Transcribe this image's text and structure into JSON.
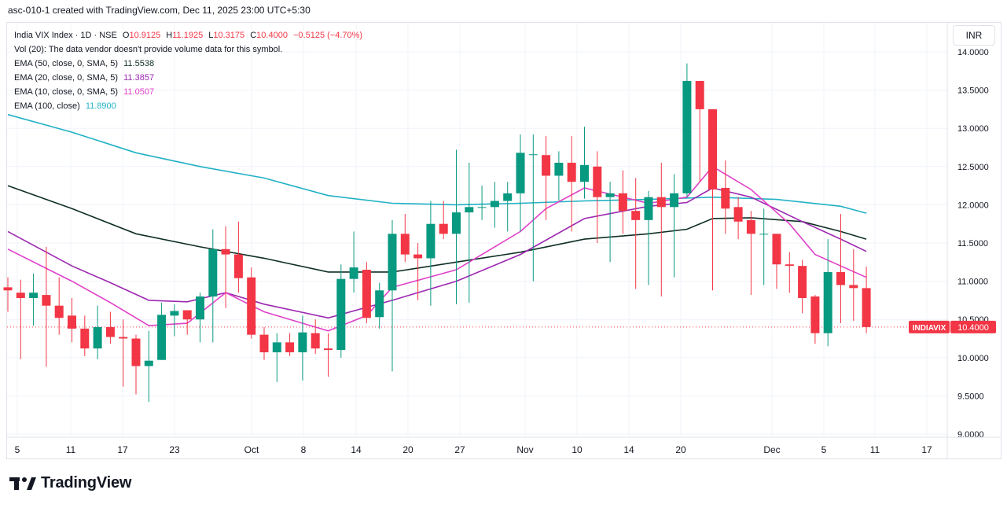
{
  "header": {
    "title": "asc-010-1 created with TradingView.com, Dec 11, 2025 23:00 UTC+5:30"
  },
  "legend": {
    "symbol": "India VIX Index · 1D · NSE",
    "open_label": "O",
    "open": "10.9125",
    "high_label": "H",
    "high": "11.1925",
    "low_label": "L",
    "low": "10.3175",
    "close_label": "C",
    "close": "10.4000",
    "change": "−0.5125 (−4.70%)",
    "volume_note": "Vol (20): The data vendor doesn't provide volume data for this symbol.",
    "ema50_label": "EMA (50, close, 0, SMA, 5)",
    "ema50_value": "11.5538",
    "ema50_color": "#0f2f25",
    "ema20_label": "EMA (20, close, 0, SMA, 5)",
    "ema20_value": "11.3857",
    "ema20_color": "#9c27b0",
    "ema10_label": "EMA (10, close, 0, SMA, 5)",
    "ema10_value": "11.0507",
    "ema10_color": "#e040c8",
    "ema100_label": "EMA (100, close)",
    "ema100_value": "11.8900",
    "ema100_color": "#22b1c5"
  },
  "currency": "INR",
  "price_tag": {
    "symbol": "INDIAVIX",
    "value": "10.4000"
  },
  "brand": "TradingView",
  "chart_data": {
    "type": "candlestick",
    "colors": {
      "up": "#089981",
      "down": "#f23645",
      "grid": "#f0f3fa",
      "last_line": "#f23645"
    },
    "ylim": [
      8.9,
      14.3
    ],
    "y_ticks": [
      "14.0000",
      "13.5000",
      "13.0000",
      "12.5000",
      "12.0000",
      "11.5000",
      "11.0000",
      "10.5000",
      "10.0000",
      "9.5000",
      "9.0000"
    ],
    "x_ticks": [
      "5",
      "11",
      "17",
      "23",
      "Oct",
      "8",
      "14",
      "20",
      "27",
      "Nov",
      "10",
      "14",
      "20",
      "Dec",
      "5",
      "11",
      "17"
    ],
    "candles": [
      {
        "o": 10.92,
        "h": 11.05,
        "l": 10.6,
        "c": 10.88
      },
      {
        "o": 10.85,
        "h": 11.02,
        "l": 9.98,
        "c": 10.78
      },
      {
        "o": 10.78,
        "h": 11.1,
        "l": 10.42,
        "c": 10.85
      },
      {
        "o": 10.82,
        "h": 11.45,
        "l": 9.88,
        "c": 10.68
      },
      {
        "o": 10.68,
        "h": 11.05,
        "l": 10.3,
        "c": 10.52
      },
      {
        "o": 10.55,
        "h": 10.78,
        "l": 10.2,
        "c": 10.38
      },
      {
        "o": 10.38,
        "h": 10.55,
        "l": 10.02,
        "c": 10.12
      },
      {
        "o": 10.12,
        "h": 10.68,
        "l": 9.98,
        "c": 10.4
      },
      {
        "o": 10.4,
        "h": 10.6,
        "l": 10.18,
        "c": 10.27
      },
      {
        "o": 10.27,
        "h": 10.5,
        "l": 9.62,
        "c": 10.25
      },
      {
        "o": 10.25,
        "h": 10.3,
        "l": 9.52,
        "c": 9.89
      },
      {
        "o": 9.89,
        "h": 10.35,
        "l": 9.42,
        "c": 9.96
      },
      {
        "o": 9.97,
        "h": 10.72,
        "l": 9.97,
        "c": 10.56
      },
      {
        "o": 10.55,
        "h": 10.7,
        "l": 10.28,
        "c": 10.61
      },
      {
        "o": 10.62,
        "h": 10.62,
        "l": 10.3,
        "c": 10.5
      },
      {
        "o": 10.5,
        "h": 10.85,
        "l": 10.2,
        "c": 10.8
      },
      {
        "o": 10.8,
        "h": 11.68,
        "l": 10.2,
        "c": 11.42
      },
      {
        "o": 11.42,
        "h": 11.72,
        "l": 10.65,
        "c": 11.35
      },
      {
        "o": 11.35,
        "h": 11.78,
        "l": 10.85,
        "c": 11.04
      },
      {
        "o": 11.05,
        "h": 11.18,
        "l": 10.25,
        "c": 10.3
      },
      {
        "o": 10.3,
        "h": 10.4,
        "l": 9.97,
        "c": 10.07
      },
      {
        "o": 10.07,
        "h": 10.32,
        "l": 9.68,
        "c": 10.2
      },
      {
        "o": 10.2,
        "h": 10.32,
        "l": 10.02,
        "c": 10.07
      },
      {
        "o": 10.07,
        "h": 10.55,
        "l": 9.7,
        "c": 10.33
      },
      {
        "o": 10.32,
        "h": 10.5,
        "l": 10.05,
        "c": 10.12
      },
      {
        "o": 10.12,
        "h": 10.32,
        "l": 9.75,
        "c": 10.1
      },
      {
        "o": 10.1,
        "h": 11.22,
        "l": 10.0,
        "c": 11.03
      },
      {
        "o": 11.03,
        "h": 11.65,
        "l": 10.85,
        "c": 11.18
      },
      {
        "o": 11.15,
        "h": 11.25,
        "l": 10.45,
        "c": 10.52
      },
      {
        "o": 10.53,
        "h": 10.98,
        "l": 10.38,
        "c": 10.88
      },
      {
        "o": 10.88,
        "h": 11.8,
        "l": 9.82,
        "c": 11.62
      },
      {
        "o": 11.62,
        "h": 11.88,
        "l": 11.25,
        "c": 11.35
      },
      {
        "o": 11.35,
        "h": 11.5,
        "l": 10.75,
        "c": 11.3
      },
      {
        "o": 11.3,
        "h": 12.05,
        "l": 10.68,
        "c": 11.75
      },
      {
        "o": 11.75,
        "h": 12.05,
        "l": 11.55,
        "c": 11.62
      },
      {
        "o": 11.62,
        "h": 12.72,
        "l": 10.7,
        "c": 11.9
      },
      {
        "o": 11.9,
        "h": 12.55,
        "l": 10.72,
        "c": 11.97
      },
      {
        "o": 11.97,
        "h": 12.25,
        "l": 11.8,
        "c": 11.97
      },
      {
        "o": 11.97,
        "h": 12.3,
        "l": 11.7,
        "c": 12.05
      },
      {
        "o": 12.05,
        "h": 12.3,
        "l": 11.65,
        "c": 12.15
      },
      {
        "o": 12.15,
        "h": 12.92,
        "l": 11.65,
        "c": 12.68
      },
      {
        "o": 12.66,
        "h": 12.92,
        "l": 11.0,
        "c": 12.66
      },
      {
        "o": 12.65,
        "h": 12.9,
        "l": 11.8,
        "c": 12.38
      },
      {
        "o": 12.38,
        "h": 12.7,
        "l": 12.05,
        "c": 12.55
      },
      {
        "o": 12.55,
        "h": 12.9,
        "l": 11.65,
        "c": 12.3
      },
      {
        "o": 12.3,
        "h": 13.02,
        "l": 12.08,
        "c": 12.52
      },
      {
        "o": 12.5,
        "h": 12.7,
        "l": 11.5,
        "c": 12.1
      },
      {
        "o": 12.1,
        "h": 12.3,
        "l": 11.25,
        "c": 12.15
      },
      {
        "o": 12.15,
        "h": 12.45,
        "l": 11.62,
        "c": 11.92
      },
      {
        "o": 11.92,
        "h": 12.35,
        "l": 10.9,
        "c": 11.8
      },
      {
        "o": 11.8,
        "h": 12.18,
        "l": 10.95,
        "c": 12.1
      },
      {
        "o": 12.1,
        "h": 12.55,
        "l": 10.8,
        "c": 11.97
      },
      {
        "o": 11.97,
        "h": 12.4,
        "l": 11.05,
        "c": 12.15
      },
      {
        "o": 12.15,
        "h": 13.85,
        "l": 12.1,
        "c": 13.62
      },
      {
        "o": 13.62,
        "h": 13.62,
        "l": 12.3,
        "c": 13.25
      },
      {
        "o": 13.25,
        "h": 13.25,
        "l": 10.88,
        "c": 12.2
      },
      {
        "o": 12.22,
        "h": 12.58,
        "l": 11.62,
        "c": 11.95
      },
      {
        "o": 11.97,
        "h": 12.1,
        "l": 11.55,
        "c": 11.78
      },
      {
        "o": 11.8,
        "h": 11.92,
        "l": 10.82,
        "c": 11.62
      },
      {
        "o": 11.62,
        "h": 11.95,
        "l": 10.95,
        "c": 11.62
      },
      {
        "o": 11.62,
        "h": 11.62,
        "l": 10.9,
        "c": 11.22
      },
      {
        "o": 11.22,
        "h": 11.38,
        "l": 10.85,
        "c": 11.2
      },
      {
        "o": 11.2,
        "h": 11.28,
        "l": 10.58,
        "c": 10.78
      },
      {
        "o": 10.8,
        "h": 10.82,
        "l": 10.18,
        "c": 10.32
      },
      {
        "o": 10.32,
        "h": 11.55,
        "l": 10.15,
        "c": 11.12
      },
      {
        "o": 11.12,
        "h": 11.88,
        "l": 10.45,
        "c": 10.95
      },
      {
        "o": 10.95,
        "h": 11.42,
        "l": 10.48,
        "c": 10.91
      },
      {
        "o": 10.91,
        "h": 11.19,
        "l": 10.32,
        "c": 10.4
      }
    ],
    "ema_series": [
      {
        "name": "EMA (100, close)",
        "color": "#22b1c5",
        "width": 1.6,
        "points": [
          [
            0,
            13.18
          ],
          [
            5,
            12.95
          ],
          [
            10,
            12.68
          ],
          [
            15,
            12.5
          ],
          [
            20,
            12.35
          ],
          [
            25,
            12.12
          ],
          [
            30,
            12.02
          ],
          [
            35,
            12.0
          ],
          [
            40,
            12.02
          ],
          [
            45,
            12.05
          ],
          [
            50,
            12.07
          ],
          [
            55,
            12.1
          ],
          [
            60,
            12.07
          ],
          [
            65,
            11.98
          ],
          [
            67,
            11.89
          ]
        ]
      },
      {
        "name": "EMA (50, close, 0, SMA, 5)",
        "color": "#0f2f25",
        "width": 1.6,
        "points": [
          [
            0,
            12.25
          ],
          [
            5,
            11.95
          ],
          [
            10,
            11.62
          ],
          [
            15,
            11.45
          ],
          [
            20,
            11.3
          ],
          [
            25,
            11.12
          ],
          [
            30,
            11.12
          ],
          [
            35,
            11.25
          ],
          [
            40,
            11.38
          ],
          [
            45,
            11.55
          ],
          [
            50,
            11.62
          ],
          [
            53,
            11.68
          ],
          [
            55,
            11.82
          ],
          [
            58,
            11.83
          ],
          [
            62,
            11.78
          ],
          [
            65,
            11.65
          ],
          [
            67,
            11.55
          ]
        ]
      },
      {
        "name": "EMA (20, close, 0, SMA, 5)",
        "color": "#9c27b0",
        "width": 1.6,
        "points": [
          [
            0,
            11.65
          ],
          [
            5,
            11.2
          ],
          [
            8,
            10.98
          ],
          [
            11,
            10.75
          ],
          [
            14,
            10.73
          ],
          [
            17,
            10.85
          ],
          [
            20,
            10.7
          ],
          [
            25,
            10.52
          ],
          [
            30,
            10.75
          ],
          [
            35,
            11.0
          ],
          [
            40,
            11.35
          ],
          [
            45,
            11.82
          ],
          [
            50,
            11.98
          ],
          [
            53,
            12.03
          ],
          [
            55,
            12.22
          ],
          [
            58,
            12.1
          ],
          [
            62,
            11.78
          ],
          [
            65,
            11.55
          ],
          [
            67,
            11.39
          ]
        ]
      },
      {
        "name": "EMA (10, close, 0, SMA, 5)",
        "color": "#e040c8",
        "width": 1.6,
        "points": [
          [
            0,
            11.42
          ],
          [
            5,
            11.0
          ],
          [
            8,
            10.72
          ],
          [
            11,
            10.42
          ],
          [
            14,
            10.45
          ],
          [
            17,
            10.85
          ],
          [
            20,
            10.6
          ],
          [
            25,
            10.35
          ],
          [
            28,
            10.55
          ],
          [
            30,
            10.92
          ],
          [
            35,
            11.15
          ],
          [
            40,
            11.65
          ],
          [
            42,
            11.95
          ],
          [
            45,
            12.22
          ],
          [
            50,
            12.02
          ],
          [
            53,
            12.1
          ],
          [
            55,
            12.5
          ],
          [
            58,
            12.2
          ],
          [
            61,
            11.75
          ],
          [
            63,
            11.35
          ],
          [
            65,
            11.2
          ],
          [
            67,
            11.05
          ]
        ]
      }
    ],
    "last_price": 10.4
  }
}
